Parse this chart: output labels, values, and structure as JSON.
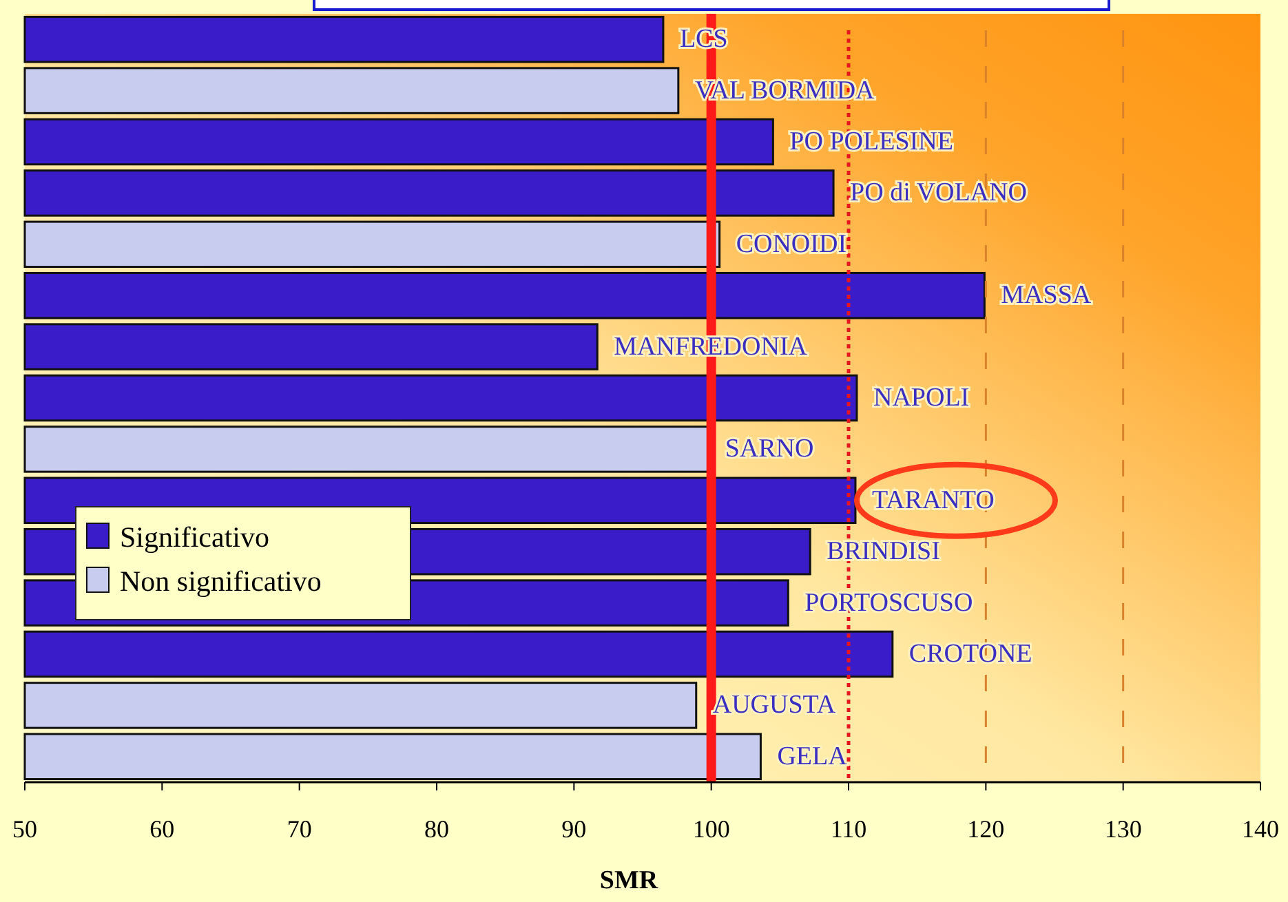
{
  "chart_data": {
    "type": "bar",
    "orientation": "horizontal",
    "xlabel": "SMR",
    "categories": [
      "LCS",
      "VAL BORMIDA",
      "PO POLESINE",
      "PO di VOLANO",
      "CONOIDI",
      "MASSA",
      "MANFREDONIA",
      "NAPOLI",
      "SARNO",
      "TARANTO",
      "BRINDISI",
      "PORTOSCUSO",
      "CROTONE",
      "AUGUSTA",
      "GELA"
    ],
    "series": [
      {
        "name": "Significativo",
        "color": "#3a1cc8",
        "values": [
          96.5,
          null,
          104.5,
          108.9,
          null,
          119.9,
          91.7,
          110.6,
          null,
          110.5,
          107.2,
          105.6,
          113.2,
          null,
          null
        ]
      },
      {
        "name": "Non significativo",
        "color": "#c8cdf0",
        "values": [
          null,
          97.6,
          null,
          null,
          100.6,
          null,
          null,
          null,
          99.8,
          null,
          null,
          null,
          null,
          98.9,
          103.6
        ]
      }
    ],
    "xlim": [
      50,
      140
    ],
    "xticks": [
      50,
      60,
      70,
      80,
      90,
      100,
      110,
      120,
      130,
      140
    ],
    "ref_lines": [
      {
        "axis": "x",
        "value": 100,
        "color": "#ff1a1a",
        "line_style": "solid"
      },
      {
        "axis": "x",
        "value": 110,
        "color": "#e8141e",
        "line_style": "dotted"
      },
      {
        "axis": "x",
        "value": 120,
        "color": "#d9822b",
        "line_style": "dashed"
      },
      {
        "axis": "x",
        "value": 130,
        "color": "#d9822b",
        "line_style": "dashed"
      }
    ],
    "legend": "left",
    "grid": false
  }
}
